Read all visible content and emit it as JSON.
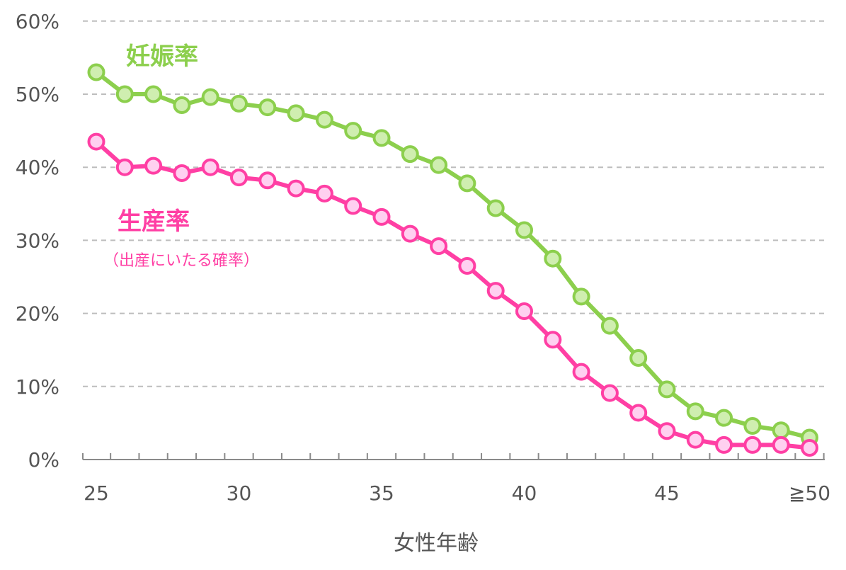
{
  "chart_data": {
    "type": "line",
    "xlabel": "女性年齢",
    "ylabel": "",
    "ylim": [
      0,
      60
    ],
    "y_ticks": [
      "0%",
      "10%",
      "20%",
      "30%",
      "40%",
      "50%",
      "60%"
    ],
    "x_tick_labels": [
      "25",
      "30",
      "35",
      "40",
      "45",
      "≧50"
    ],
    "grid": true,
    "x": [
      25,
      26,
      27,
      28,
      29,
      30,
      31,
      32,
      33,
      34,
      35,
      36,
      37,
      38,
      39,
      40,
      41,
      42,
      43,
      44,
      45,
      46,
      47,
      48,
      49,
      50
    ],
    "series": [
      {
        "name": "妊娠率",
        "color": "#8ccf4d",
        "fill": "#cfeeb0",
        "values": [
          53,
          50,
          50,
          48.5,
          49.6,
          48.7,
          48.2,
          47.4,
          46.5,
          45,
          44,
          41.8,
          40.3,
          37.8,
          34.4,
          31.4,
          27.5,
          22.3,
          18.3,
          13.9,
          9.6,
          6.6,
          5.7,
          4.6,
          4,
          3
        ]
      },
      {
        "name": "生産率",
        "subtitle": "（出産にいたる確率）",
        "color": "#ff3fa4",
        "fill": "#ffd0f0",
        "values": [
          43.5,
          40,
          40.2,
          39.2,
          40,
          38.6,
          38.2,
          37.1,
          36.4,
          34.7,
          33.2,
          30.9,
          29.2,
          26.5,
          23.1,
          20.3,
          16.4,
          12,
          9.1,
          6.4,
          3.9,
          2.7,
          2,
          2,
          2,
          1.6
        ]
      }
    ]
  }
}
